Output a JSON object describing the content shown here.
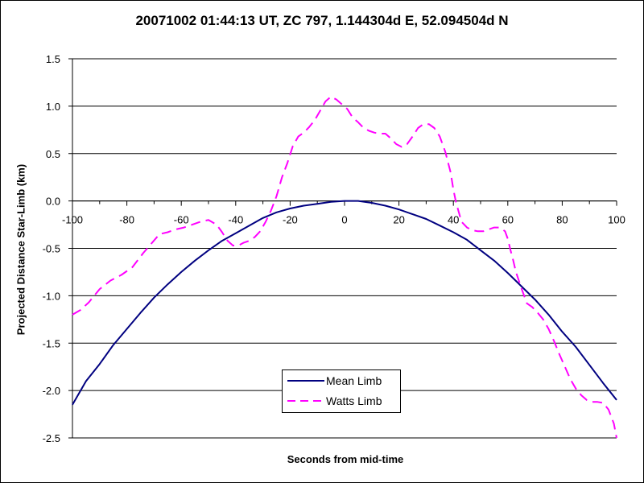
{
  "chart_data": {
    "type": "line",
    "title": "20071002 01:44:13 UT, ZC 797, 1.144304d E, 52.094504d N",
    "xlabel": "Seconds from mid-time",
    "ylabel": "Projected Distance Star-Limb (km)",
    "xlim": [
      -100,
      100
    ],
    "ylim": [
      -2.5,
      1.5
    ],
    "xticks": [
      -100,
      -80,
      -60,
      -40,
      -20,
      0,
      20,
      40,
      60,
      80,
      100
    ],
    "yticks": [
      1.5,
      1.0,
      0.5,
      0.0,
      -0.5,
      -1.0,
      -1.5,
      -2.0,
      -2.5
    ],
    "xtick_labels": [
      "-100",
      "-80",
      "-60",
      "-40",
      "-20",
      "0",
      "20",
      "40",
      "60",
      "80",
      "100"
    ],
    "ytick_labels": [
      "1.5",
      "1.0",
      "0.5",
      "0.0",
      "-0.5",
      "-1.0",
      "-1.5",
      "-2.0",
      "-2.5"
    ],
    "x_axis_position": "y = 0",
    "grid": "horizontal major gridlines",
    "legend": "bottom-center",
    "series": [
      {
        "name": "Mean Limb",
        "color": "#000080",
        "style": "solid",
        "x": [
          -100,
          -95,
          -90,
          -85,
          -80,
          -75,
          -70,
          -65,
          -60,
          -55,
          -50,
          -45,
          -40,
          -35,
          -30,
          -25,
          -20,
          -15,
          -10,
          -5,
          0,
          5,
          10,
          15,
          20,
          25,
          30,
          35,
          40,
          45,
          50,
          55,
          60,
          65,
          70,
          75,
          80,
          85,
          90,
          95,
          100
        ],
        "y": [
          -2.15,
          -1.9,
          -1.72,
          -1.52,
          -1.35,
          -1.18,
          -1.02,
          -0.88,
          -0.75,
          -0.63,
          -0.52,
          -0.42,
          -0.34,
          -0.26,
          -0.18,
          -0.12,
          -0.08,
          -0.05,
          -0.03,
          -0.01,
          0.0,
          0.0,
          -0.02,
          -0.05,
          -0.09,
          -0.14,
          -0.19,
          -0.26,
          -0.33,
          -0.41,
          -0.52,
          -0.63,
          -0.76,
          -0.9,
          -1.04,
          -1.2,
          -1.38,
          -1.54,
          -1.73,
          -1.92,
          -2.1
        ]
      },
      {
        "name": "Watts Limb",
        "color": "#FF00FF",
        "style": "dashed",
        "x": [
          -100,
          -97,
          -94,
          -90,
          -86,
          -82,
          -78,
          -74,
          -71,
          -68,
          -65,
          -62,
          -59,
          -56,
          -53,
          -50,
          -47,
          -45,
          -43,
          -41,
          -39,
          -37,
          -35,
          -33,
          -31,
          -29,
          -27,
          -25,
          -23,
          -21,
          -19,
          -17,
          -15,
          -13,
          -11,
          -9,
          -7,
          -5,
          -3,
          -1,
          1,
          3,
          5,
          7,
          9,
          11,
          13,
          15,
          17,
          19,
          21,
          23,
          25,
          27,
          29,
          31,
          33,
          35,
          37,
          39,
          40,
          41,
          42,
          43,
          45,
          47,
          49,
          51,
          53,
          55,
          57,
          59,
          60,
          61,
          62,
          63,
          65,
          67,
          69,
          71,
          73,
          75,
          77,
          79,
          81,
          83,
          85,
          87,
          89,
          91,
          93,
          95,
          97,
          99,
          100
        ],
        "y": [
          -1.2,
          -1.15,
          -1.07,
          -0.93,
          -0.84,
          -0.78,
          -0.7,
          -0.55,
          -0.45,
          -0.35,
          -0.33,
          -0.3,
          -0.28,
          -0.25,
          -0.22,
          -0.2,
          -0.25,
          -0.33,
          -0.42,
          -0.47,
          -0.47,
          -0.44,
          -0.42,
          -0.38,
          -0.32,
          -0.22,
          -0.1,
          0.05,
          0.25,
          0.4,
          0.58,
          0.68,
          0.72,
          0.78,
          0.85,
          0.95,
          1.05,
          1.1,
          1.07,
          1.02,
          0.97,
          0.88,
          0.83,
          0.77,
          0.74,
          0.72,
          0.71,
          0.71,
          0.66,
          0.6,
          0.57,
          0.6,
          0.68,
          0.77,
          0.81,
          0.81,
          0.77,
          0.68,
          0.52,
          0.3,
          0.12,
          -0.02,
          -0.12,
          -0.22,
          -0.28,
          -0.31,
          -0.32,
          -0.32,
          -0.3,
          -0.28,
          -0.28,
          -0.32,
          -0.4,
          -0.52,
          -0.63,
          -0.75,
          -0.92,
          -1.08,
          -1.12,
          -1.18,
          -1.25,
          -1.35,
          -1.48,
          -1.62,
          -1.75,
          -1.88,
          -1.98,
          -2.05,
          -2.1,
          -2.12,
          -2.12,
          -2.13,
          -2.2,
          -2.35,
          -2.5
        ]
      }
    ]
  }
}
